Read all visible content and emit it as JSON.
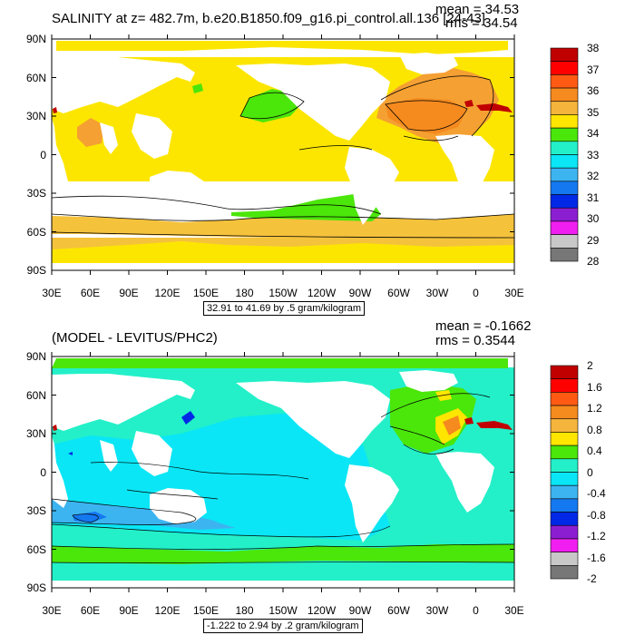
{
  "colors": {
    "land": "#ffffff",
    "contour": "#000000"
  },
  "panels": [
    {
      "id": "top",
      "title": "SALINITY at z= 482.7m, b.e20.B1850.f09_g16.pi_control.all.136 [24-43]",
      "mean_text": "mean = 34.53",
      "rms_text": "rms = 34.54",
      "range_text": "32.91 to 41.69 by .5 gram/kilogram",
      "lat_labels": [
        "90N",
        "60N",
        "30N",
        "0",
        "30S",
        "60S",
        "90S"
      ],
      "lon_labels": [
        "30E",
        "60E",
        "90E",
        "120E",
        "150E",
        "180",
        "150W",
        "120W",
        "90W",
        "60W",
        "30W",
        "0",
        "30E"
      ],
      "colorbar": {
        "labels": [
          "38",
          "37",
          "36",
          "35",
          "34",
          "33",
          "32",
          "31",
          "30",
          "29",
          "28"
        ],
        "colors": [
          "#c00000",
          "#ff0000",
          "#ff5a14",
          "#f58a1e",
          "#f5b43c",
          "#ffe600",
          "#4be60a",
          "#23f0c8",
          "#0ae6f5",
          "#3cb4f0",
          "#1478f0",
          "#0028e6",
          "#8c1ed2",
          "#f01ef0",
          "#c8c8c8",
          "#777777"
        ]
      }
    },
    {
      "id": "bottom",
      "title": "(MODEL - LEVITUS/PHC2)",
      "mean_text": "mean = -0.1662",
      "rms_text": "rms = 0.3544",
      "range_text": "-1.222 to 2.94 by .2 gram/kilogram",
      "lat_labels": [
        "90N",
        "60N",
        "30N",
        "0",
        "30S",
        "60S",
        "90S"
      ],
      "lon_labels": [
        "30E",
        "60E",
        "90E",
        "120E",
        "150E",
        "180",
        "150W",
        "120W",
        "90W",
        "60W",
        "30W",
        "0",
        "30E"
      ],
      "colorbar": {
        "labels": [
          "2",
          "1.6",
          "1.2",
          "0.8",
          "0.4",
          "0",
          "-0.4",
          "-0.8",
          "-1.2",
          "-1.6",
          "-2"
        ],
        "colors": [
          "#c00000",
          "#ff0000",
          "#ff5a14",
          "#f58a1e",
          "#f5b43c",
          "#ffe600",
          "#4be60a",
          "#23f0c8",
          "#0ae6f5",
          "#3cb4f0",
          "#1478f0",
          "#0028e6",
          "#8c1ed2",
          "#f01ef0",
          "#c8c8c8",
          "#777777"
        ]
      }
    }
  ]
}
